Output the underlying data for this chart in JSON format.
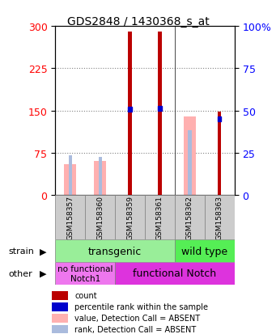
{
  "title": "GDS2848 / 1430368_s_at",
  "samples": [
    "GSM158357",
    "GSM158360",
    "GSM158359",
    "GSM158361",
    "GSM158362",
    "GSM158363"
  ],
  "count_values": [
    0,
    0,
    290,
    290,
    0,
    148
  ],
  "value_absent": [
    55,
    60,
    0,
    0,
    140,
    0
  ],
  "rank_absent": [
    70,
    68,
    0,
    0,
    115,
    130
  ],
  "percentile_rank": [
    0,
    0,
    152,
    154,
    0,
    135
  ],
  "left_yticks": [
    0,
    75,
    150,
    225,
    300
  ],
  "right_yticks": [
    0,
    25,
    50,
    75,
    100
  ],
  "ylim": [
    0,
    300
  ],
  "color_red": "#BB0000",
  "color_blue": "#0000CC",
  "color_pink": "#FFB0B0",
  "color_lightblue": "#AABBDD",
  "color_green_trans": "#99EE99",
  "color_green_wild": "#55EE55",
  "color_purple_light": "#EE77EE",
  "color_purple_dark": "#DD33DD",
  "color_gray": "#CCCCCC",
  "strain_transgenic": "transgenic",
  "strain_wildtype": "wild type",
  "other_nofunc": "no functional\nNotch1",
  "other_func": "functional Notch",
  "legend_items": [
    "count",
    "percentile rank within the sample",
    "value, Detection Call = ABSENT",
    "rank, Detection Call = ABSENT"
  ],
  "legend_colors": [
    "#BB0000",
    "#0000CC",
    "#FFB0B0",
    "#AABBDD"
  ],
  "bar_width": 0.4
}
